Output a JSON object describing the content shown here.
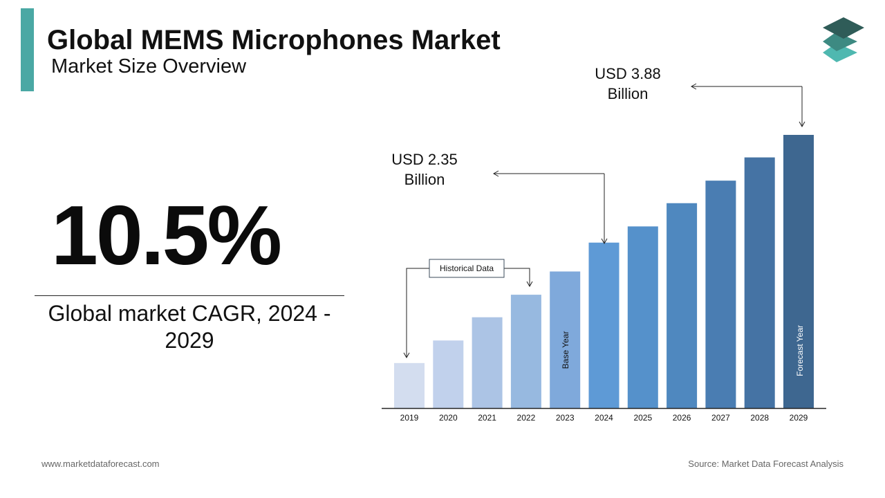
{
  "header": {
    "title": "Global MEMS Microphones Market",
    "subtitle": "Market Size Overview"
  },
  "kpi": {
    "value": "10.5%",
    "caption": "Global market CAGR, 2024 - 2029"
  },
  "chart_data": {
    "type": "bar",
    "categories": [
      "2019",
      "2020",
      "2021",
      "2022",
      "2023",
      "2024",
      "2025",
      "2026",
      "2027",
      "2028",
      "2029"
    ],
    "values": [
      0.64,
      0.96,
      1.29,
      1.61,
      1.94,
      2.35,
      2.58,
      2.91,
      3.23,
      3.56,
      3.88
    ],
    "value_labels": [
      null,
      null,
      null,
      null,
      null,
      "USD 2.35 Billion",
      null,
      null,
      null,
      null,
      "USD 3.88 Billion"
    ],
    "colors": [
      "#d3ddef",
      "#c1d1ec",
      "#acc4e5",
      "#97b9e0",
      "#7fa9db",
      "#5e9ad6",
      "#5591cb",
      "#4f88bf",
      "#4a7db2",
      "#4573a4",
      "#3e6790"
    ],
    "historical_label": "Historical Data",
    "base_year_label": "Base Year",
    "forecast_year_label": "Forecast Year"
  },
  "footer": {
    "website": "www.marketdataforecast.com",
    "source": "Source: Market Data Forecast Analysis"
  }
}
